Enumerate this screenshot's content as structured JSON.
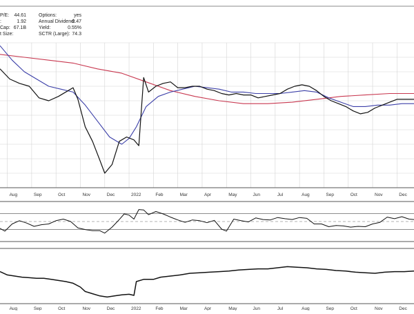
{
  "info_panel": {
    "rows_left": [
      {
        "label": "P/E:",
        "value": "44.61"
      },
      {
        "label": ":",
        "value": "1.92"
      },
      {
        "label": "Cap:",
        "value": "67.1B"
      },
      {
        "label": "t Size:",
        "value": ""
      }
    ],
    "rows_right": [
      {
        "label": "Options:",
        "value": "yes"
      },
      {
        "label": "Annual Dividend:",
        "value": "0.47"
      },
      {
        "label": "Yield:",
        "value": "0.55%"
      },
      {
        "label": "SCTR (Large):",
        "value": "74.3"
      }
    ]
  },
  "colors": {
    "price": "#111111",
    "ma_short": "#3b3fa8",
    "ma_long": "#c8374f",
    "grid": "#d4d4d4",
    "indicator_pos": "#3f8f3f",
    "indicator_neg": "#b23b3b"
  },
  "chart_data": {
    "type": "line",
    "x_axis_labels": [
      "Aug",
      "Sep",
      "Oct",
      "Nov",
      "Dec",
      "2022",
      "Feb",
      "Mar",
      "Apr",
      "May",
      "Jun",
      "Jul",
      "Aug",
      "Sep",
      "Oct",
      "Nov",
      "Dec"
    ],
    "x_axis_positions": [
      0.3,
      1.3,
      2.3,
      3.3,
      4.3,
      5.3,
      6.3,
      7.3,
      8.3,
      9.3,
      10.3,
      11.3,
      12.3,
      13.3,
      14.3,
      15.3,
      16.3
    ],
    "x_range": [
      0,
      17
    ],
    "price_panel": {
      "ylim": [
        0,
        100
      ],
      "price": [
        [
          0,
          82
        ],
        [
          0.4,
          75
        ],
        [
          0.8,
          72
        ],
        [
          1.2,
          70
        ],
        [
          1.6,
          62
        ],
        [
          2.0,
          60
        ],
        [
          2.4,
          63
        ],
        [
          2.8,
          67
        ],
        [
          3.0,
          69
        ],
        [
          3.2,
          61
        ],
        [
          3.5,
          42
        ],
        [
          3.8,
          32
        ],
        [
          4.1,
          19
        ],
        [
          4.3,
          10
        ],
        [
          4.6,
          16
        ],
        [
          4.9,
          32
        ],
        [
          5.2,
          35
        ],
        [
          5.5,
          33
        ],
        [
          5.7,
          29
        ],
        [
          5.9,
          76
        ],
        [
          6.1,
          66
        ],
        [
          6.4,
          70
        ],
        [
          6.7,
          72
        ],
        [
          7.0,
          73
        ],
        [
          7.3,
          69
        ],
        [
          7.6,
          69
        ],
        [
          7.9,
          70
        ],
        [
          8.2,
          70
        ],
        [
          8.5,
          68
        ],
        [
          8.8,
          67
        ],
        [
          9.1,
          65
        ],
        [
          9.4,
          64
        ],
        [
          9.7,
          65
        ],
        [
          10.0,
          64
        ],
        [
          10.3,
          64
        ],
        [
          10.6,
          62
        ],
        [
          10.9,
          63
        ],
        [
          11.2,
          64
        ],
        [
          11.5,
          65
        ],
        [
          11.8,
          68
        ],
        [
          12.1,
          70
        ],
        [
          12.4,
          71
        ],
        [
          12.7,
          70
        ],
        [
          13.0,
          67
        ],
        [
          13.3,
          63
        ],
        [
          13.6,
          60
        ],
        [
          13.9,
          58
        ],
        [
          14.2,
          56
        ],
        [
          14.5,
          53
        ],
        [
          14.8,
          51
        ],
        [
          15.1,
          52
        ],
        [
          15.4,
          55
        ],
        [
          15.7,
          57
        ],
        [
          16.0,
          59
        ],
        [
          16.3,
          61
        ],
        [
          16.6,
          61
        ],
        [
          17,
          61
        ]
      ],
      "ma_short": [
        [
          0,
          98
        ],
        [
          0.5,
          88
        ],
        [
          1.0,
          80
        ],
        [
          1.5,
          75
        ],
        [
          2.0,
          70
        ],
        [
          2.5,
          68
        ],
        [
          3.0,
          66
        ],
        [
          3.5,
          57
        ],
        [
          4.0,
          46
        ],
        [
          4.5,
          35
        ],
        [
          5.0,
          30
        ],
        [
          5.3,
          34
        ],
        [
          5.6,
          42
        ],
        [
          6.0,
          56
        ],
        [
          6.5,
          63
        ],
        [
          7.0,
          66
        ],
        [
          7.5,
          68
        ],
        [
          8.0,
          70
        ],
        [
          8.5,
          69
        ],
        [
          9.0,
          68
        ],
        [
          9.5,
          66
        ],
        [
          10.0,
          66
        ],
        [
          10.5,
          65
        ],
        [
          11.0,
          65
        ],
        [
          11.5,
          65
        ],
        [
          12.0,
          66
        ],
        [
          12.5,
          67
        ],
        [
          13.0,
          66
        ],
        [
          13.5,
          62
        ],
        [
          14.0,
          59
        ],
        [
          14.5,
          56
        ],
        [
          15.0,
          56
        ],
        [
          15.5,
          57
        ],
        [
          16.0,
          57
        ],
        [
          16.5,
          58
        ],
        [
          17,
          58
        ]
      ],
      "ma_long": [
        [
          0,
          92
        ],
        [
          1.0,
          90
        ],
        [
          2.0,
          88
        ],
        [
          3.0,
          86
        ],
        [
          4.0,
          82
        ],
        [
          5.0,
          79
        ],
        [
          6.0,
          73
        ],
        [
          7.0,
          67
        ],
        [
          8.0,
          63
        ],
        [
          9.0,
          60
        ],
        [
          10.0,
          58
        ],
        [
          11.0,
          58
        ],
        [
          12.0,
          59
        ],
        [
          13.0,
          61
        ],
        [
          14.0,
          63
        ],
        [
          15.0,
          64
        ],
        [
          16.0,
          65
        ],
        [
          17,
          65
        ]
      ]
    },
    "indicator_panel": {
      "ylim": [
        0,
        100
      ],
      "upper_line": 70,
      "lower_line": 30,
      "mid_line": 50,
      "values": [
        [
          0,
          33
        ],
        [
          0.2,
          26
        ],
        [
          0.5,
          44
        ],
        [
          0.8,
          52
        ],
        [
          1.1,
          46
        ],
        [
          1.4,
          38
        ],
        [
          1.7,
          42
        ],
        [
          2.0,
          44
        ],
        [
          2.3,
          52
        ],
        [
          2.6,
          56
        ],
        [
          2.9,
          50
        ],
        [
          3.2,
          34
        ],
        [
          3.5,
          30
        ],
        [
          3.8,
          27
        ],
        [
          4.1,
          27
        ],
        [
          4.3,
          21
        ],
        [
          4.6,
          36
        ],
        [
          4.9,
          55
        ],
        [
          5.1,
          69
        ],
        [
          5.3,
          66
        ],
        [
          5.5,
          56
        ],
        [
          5.7,
          80
        ],
        [
          5.9,
          79
        ],
        [
          6.1,
          67
        ],
        [
          6.4,
          75
        ],
        [
          6.7,
          69
        ],
        [
          7.0,
          61
        ],
        [
          7.3,
          54
        ],
        [
          7.6,
          48
        ],
        [
          7.9,
          54
        ],
        [
          8.2,
          52
        ],
        [
          8.5,
          47
        ],
        [
          8.8,
          53
        ],
        [
          9.1,
          31
        ],
        [
          9.3,
          26
        ],
        [
          9.6,
          56
        ],
        [
          9.9,
          52
        ],
        [
          10.2,
          49
        ],
        [
          10.5,
          59
        ],
        [
          10.8,
          55
        ],
        [
          11.1,
          54
        ],
        [
          11.4,
          60
        ],
        [
          11.7,
          57
        ],
        [
          12.0,
          55
        ],
        [
          12.3,
          60
        ],
        [
          12.6,
          58
        ],
        [
          12.9,
          44
        ],
        [
          13.2,
          44
        ],
        [
          13.5,
          37
        ],
        [
          13.8,
          40
        ],
        [
          14.1,
          39
        ],
        [
          14.4,
          36
        ],
        [
          14.7,
          38
        ],
        [
          15.0,
          37
        ],
        [
          15.3,
          44
        ],
        [
          15.6,
          48
        ],
        [
          15.9,
          61
        ],
        [
          16.2,
          57
        ],
        [
          16.5,
          62
        ],
        [
          16.8,
          56
        ],
        [
          17,
          55
        ]
      ]
    },
    "lower_panel": {
      "ylim": [
        0,
        100
      ],
      "values": [
        [
          0,
          58
        ],
        [
          0.3,
          52
        ],
        [
          0.6,
          50
        ],
        [
          0.9,
          48
        ],
        [
          1.2,
          47
        ],
        [
          1.5,
          46
        ],
        [
          1.8,
          46
        ],
        [
          2.1,
          44
        ],
        [
          2.4,
          42
        ],
        [
          2.7,
          40
        ],
        [
          3.0,
          37
        ],
        [
          3.3,
          30
        ],
        [
          3.5,
          22
        ],
        [
          3.8,
          18
        ],
        [
          4.1,
          14
        ],
        [
          4.4,
          12
        ],
        [
          4.7,
          14
        ],
        [
          5.0,
          16
        ],
        [
          5.3,
          17
        ],
        [
          5.5,
          15
        ],
        [
          5.6,
          40
        ],
        [
          5.9,
          44
        ],
        [
          6.3,
          44
        ],
        [
          6.6,
          48
        ],
        [
          7.0,
          50
        ],
        [
          7.4,
          52
        ],
        [
          7.8,
          55
        ],
        [
          8.2,
          56
        ],
        [
          8.6,
          57
        ],
        [
          9.0,
          58
        ],
        [
          9.4,
          59
        ],
        [
          9.8,
          61
        ],
        [
          10.2,
          62
        ],
        [
          10.6,
          63
        ],
        [
          11.0,
          63
        ],
        [
          11.4,
          65
        ],
        [
          11.8,
          67
        ],
        [
          12.2,
          66
        ],
        [
          12.6,
          65
        ],
        [
          13.0,
          63
        ],
        [
          13.4,
          62
        ],
        [
          13.8,
          60
        ],
        [
          14.2,
          59
        ],
        [
          14.6,
          57
        ],
        [
          15.0,
          56
        ],
        [
          15.4,
          55
        ],
        [
          15.8,
          57
        ],
        [
          16.2,
          58
        ],
        [
          16.6,
          58
        ],
        [
          17,
          59
        ]
      ]
    }
  }
}
